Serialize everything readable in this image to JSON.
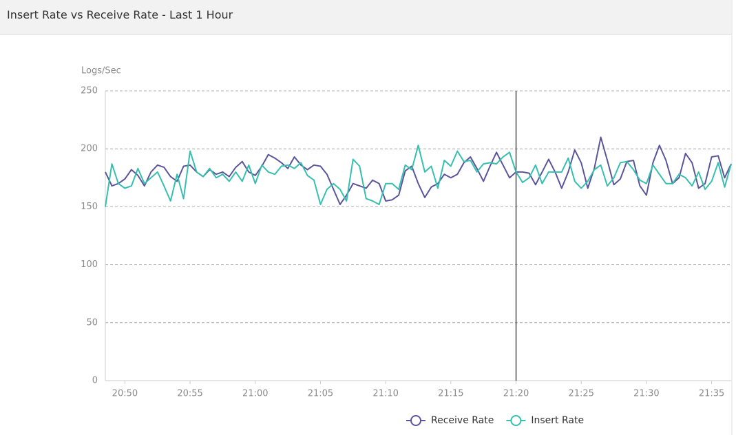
{
  "chart_data": {
    "type": "line",
    "title": "Insert Rate vs Receive Rate - Last 1 Hour",
    "y_label": "Logs/Sec",
    "categories": [
      null,
      null,
      null,
      "20:50",
      null,
      null,
      null,
      null,
      null,
      null,
      null,
      null,
      null,
      "20:55",
      null,
      null,
      null,
      null,
      null,
      null,
      null,
      null,
      null,
      "21:00",
      null,
      null,
      null,
      null,
      null,
      null,
      null,
      null,
      null,
      "21:05",
      null,
      null,
      null,
      null,
      null,
      null,
      null,
      null,
      null,
      "21:10",
      null,
      null,
      null,
      null,
      null,
      null,
      null,
      null,
      null,
      "21:15",
      null,
      null,
      null,
      null,
      null,
      null,
      null,
      null,
      null,
      "21:20",
      null,
      null,
      null,
      null,
      null,
      null,
      null,
      null,
      null,
      "21:25",
      null,
      null,
      null,
      null,
      null,
      null,
      null,
      null,
      null,
      "21:30",
      null,
      null,
      null,
      null,
      null,
      null,
      null,
      null,
      null,
      "21:35",
      null,
      null,
      null
    ],
    "series": [
      {
        "name": "Receive Rate",
        "color": "#5a559b",
        "values": [
          180,
          168,
          170,
          174,
          182,
          177,
          168,
          180,
          186,
          184,
          176,
          172,
          185,
          186,
          180,
          176,
          182,
          178,
          180,
          176,
          184,
          189,
          180,
          177,
          185,
          195,
          192,
          188,
          183,
          193,
          186,
          182,
          186,
          185,
          178,
          165,
          152,
          160,
          170,
          168,
          166,
          173,
          170,
          155,
          156,
          160,
          181,
          185,
          170,
          158,
          167,
          170,
          178,
          175,
          178,
          188,
          193,
          183,
          172,
          185,
          197,
          186,
          175,
          180,
          180,
          179,
          169,
          180,
          191,
          180,
          166,
          180,
          199,
          188,
          166,
          183,
          210,
          190,
          169,
          174,
          189,
          190,
          168,
          160,
          188,
          203,
          190,
          170,
          175,
          196,
          188,
          166,
          170,
          193,
          194,
          175,
          187
        ]
      },
      {
        "name": "Insert Rate",
        "color": "#36bfae",
        "values": [
          150,
          187,
          170,
          166,
          168,
          183,
          170,
          175,
          180,
          168,
          155,
          178,
          157,
          198,
          180,
          176,
          183,
          175,
          178,
          172,
          180,
          172,
          186,
          170,
          186,
          180,
          178,
          185,
          186,
          183,
          188,
          177,
          173,
          152,
          165,
          170,
          165,
          155,
          191,
          185,
          157,
          155,
          152,
          170,
          170,
          165,
          186,
          182,
          203,
          180,
          185,
          166,
          190,
          185,
          198,
          189,
          190,
          180,
          187,
          188,
          187,
          193,
          197,
          180,
          171,
          175,
          186,
          170,
          180,
          180,
          180,
          192,
          172,
          166,
          172,
          182,
          186,
          168,
          175,
          188,
          189,
          182,
          173,
          170,
          186,
          178,
          170,
          170,
          178,
          175,
          168,
          180,
          165,
          172,
          188,
          167,
          187
        ]
      }
    ],
    "ylim": [
      0,
      250
    ],
    "yticks": [
      0,
      50,
      100,
      150,
      200,
      250
    ],
    "grid": true,
    "legend": "bottom"
  }
}
